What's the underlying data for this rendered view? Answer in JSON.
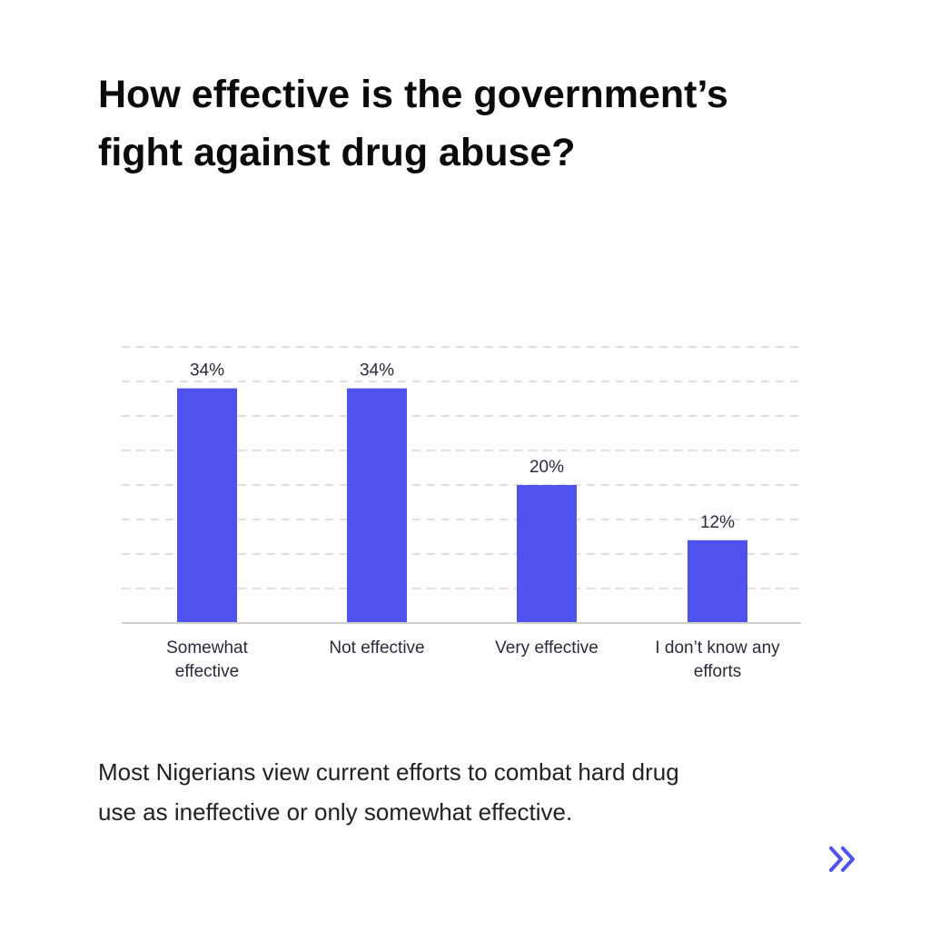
{
  "title": {
    "line1": "How effective is the government’s",
    "line2": "fight against drug abuse?"
  },
  "caption": {
    "line1": "Most Nigerians view current efforts to combat hard drug",
    "line2": "use as ineffective or only somewhat effective."
  },
  "icons": {
    "next": "double-chevron-right-icon"
  },
  "colors": {
    "bar": "#4f52ed",
    "grid": "#d6d6d6",
    "axis": "#cfcfcf",
    "label": "#2b2b3a",
    "accent": "#4f52ed"
  },
  "chart_data": {
    "type": "bar",
    "categories": [
      [
        "Somewhat",
        "effective"
      ],
      [
        "Not effective"
      ],
      [
        "Very effective"
      ],
      [
        "I don’t know any",
        "efforts"
      ]
    ],
    "values": [
      34,
      34,
      20,
      12
    ],
    "data_labels": [
      "34%",
      "34%",
      "20%",
      "12%"
    ],
    "ylim": [
      0,
      40
    ],
    "grid": true,
    "title": "",
    "xlabel": "",
    "ylabel": ""
  }
}
